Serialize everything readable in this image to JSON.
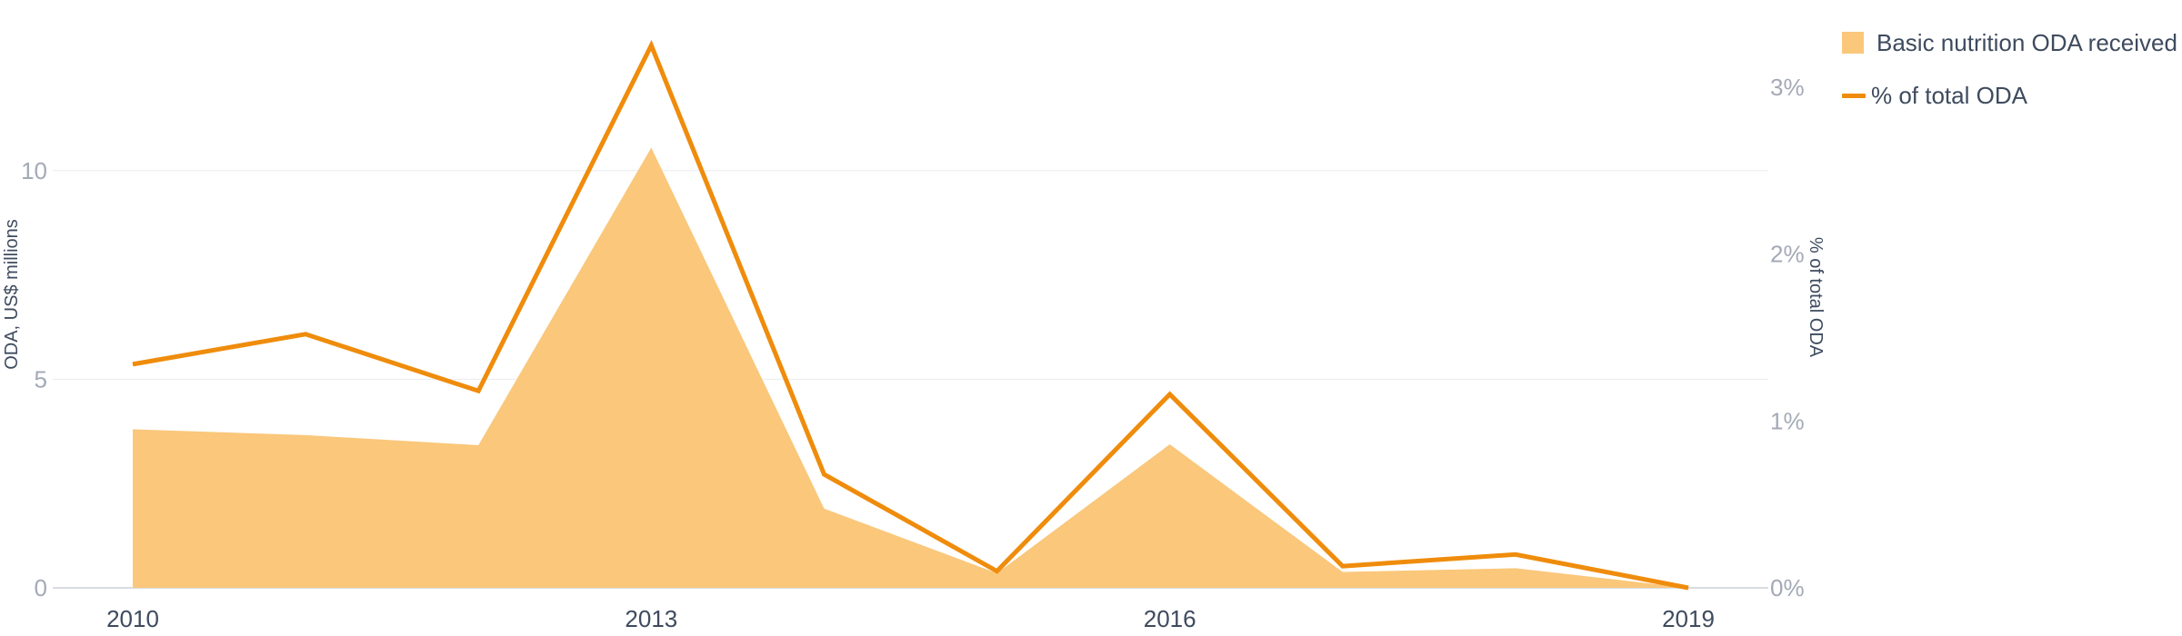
{
  "chart_data": {
    "type": "area",
    "x": [
      2010,
      2011,
      2012,
      2013,
      2014,
      2015,
      2016,
      2017,
      2018,
      2019
    ],
    "xticks": [
      "2010",
      "2013",
      "2016",
      "2019"
    ],
    "xlim": [
      2010,
      2019
    ],
    "series": [
      {
        "name": "Basic nutrition ODA received",
        "kind": "area",
        "axis": "left",
        "color": "#fac77b",
        "values": [
          3.8,
          3.66,
          3.42,
          10.55,
          1.9,
          0.35,
          3.44,
          0.38,
          0.47,
          0.0
        ]
      },
      {
        "name": "% of total ODA",
        "kind": "line",
        "axis": "right",
        "color": "#ef8c0c",
        "values": [
          1.34,
          1.52,
          1.18,
          3.25,
          0.68,
          0.1,
          1.16,
          0.13,
          0.2,
          0.0
        ]
      }
    ],
    "left_axis": {
      "label": "ODA, US$ millions",
      "ticks": [
        "0",
        "5",
        "10"
      ],
      "tick_values": [
        0,
        5,
        10
      ],
      "ylim": [
        0,
        13
      ]
    },
    "right_axis": {
      "label": "% of total ODA",
      "ticks": [
        "0%",
        "1%",
        "2%",
        "3%"
      ],
      "tick_values": [
        0,
        1,
        2,
        3
      ],
      "ylim": [
        0,
        3.25
      ]
    },
    "grid": true,
    "legend": "top-right"
  }
}
